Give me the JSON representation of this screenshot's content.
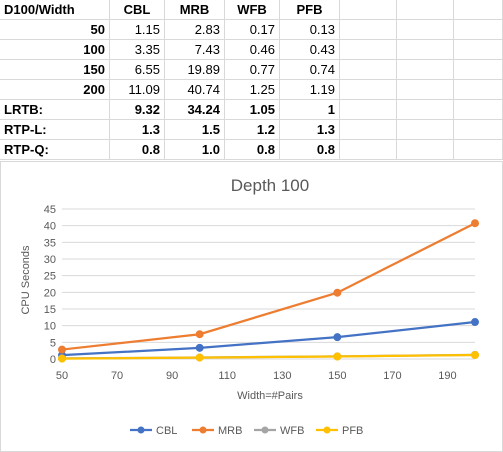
{
  "table": {
    "header": [
      "D100/Width",
      "CBL",
      "MRB",
      "WFB",
      "PFB"
    ],
    "rows": [
      {
        "label": "50",
        "values": [
          "1.15",
          "2.83",
          "0.17",
          "0.13"
        ],
        "bold": false
      },
      {
        "label": "100",
        "values": [
          "3.35",
          "7.43",
          "0.46",
          "0.43"
        ],
        "bold": false
      },
      {
        "label": "150",
        "values": [
          "6.55",
          "19.89",
          "0.77",
          "0.74"
        ],
        "bold": false
      },
      {
        "label": "200",
        "values": [
          "11.09",
          "40.74",
          "1.25",
          "1.19"
        ],
        "bold": false
      },
      {
        "label": "LRTB:",
        "values": [
          "9.32",
          "34.24",
          "1.05",
          "1"
        ],
        "bold": true
      },
      {
        "label": "RTP-L:",
        "values": [
          "1.3",
          "1.5",
          "1.2",
          "1.3"
        ],
        "bold": true
      },
      {
        "label": "RTP-Q:",
        "values": [
          "0.8",
          "1.0",
          "0.8",
          "0.8"
        ],
        "bold": true
      }
    ]
  },
  "chart_data": {
    "type": "line",
    "title": "Depth 100",
    "xlabel": "Width=#Pairs",
    "ylabel": "CPU Seconds",
    "x": [
      50,
      100,
      150,
      200
    ],
    "xlim": [
      50,
      200
    ],
    "xticks": [
      50,
      70,
      90,
      110,
      130,
      150,
      170,
      190
    ],
    "ylim": [
      0,
      45
    ],
    "yticks": [
      0,
      5,
      10,
      15,
      20,
      25,
      30,
      35,
      40,
      45
    ],
    "grid": true,
    "legend": "bottom",
    "series": [
      {
        "name": "CBL",
        "color": "#4472c4",
        "values": [
          1.15,
          3.35,
          6.55,
          11.09
        ]
      },
      {
        "name": "MRB",
        "color": "#ed7d31",
        "values": [
          2.83,
          7.43,
          19.89,
          40.74
        ]
      },
      {
        "name": "WFB",
        "color": "#a5a5a5",
        "values": [
          0.17,
          0.46,
          0.77,
          1.25
        ]
      },
      {
        "name": "PFB",
        "color": "#ffc000",
        "values": [
          0.13,
          0.43,
          0.74,
          1.19
        ]
      }
    ]
  }
}
